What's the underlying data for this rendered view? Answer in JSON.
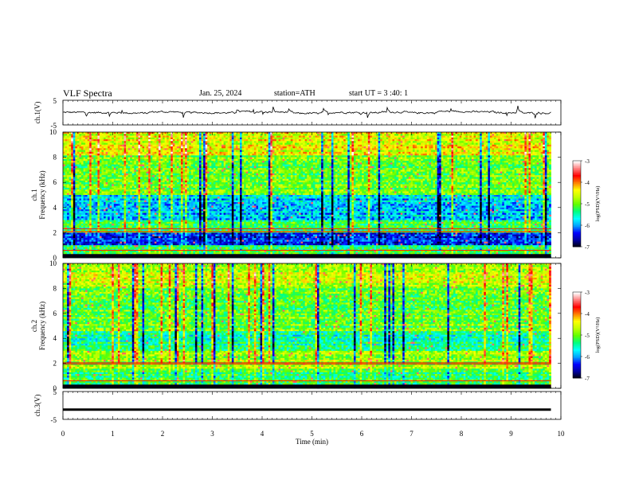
{
  "header": {
    "title": "VLF  Spectra",
    "date": "Jan. 25, 2024",
    "station": "station=ATH",
    "start_ut": "start  UT  =   3  :40: 1"
  },
  "chart_data": [
    {
      "type": "line",
      "panel": "ch1-voltage",
      "ylabel": "ch.1(V)",
      "ylim": [
        -5,
        5
      ],
      "yticks": [
        "5",
        "-5"
      ],
      "xlim": [
        0,
        10
      ],
      "series": [
        {
          "mean": 0,
          "amplitude_approx": 1.2,
          "values_approx": [
            0.1,
            0.0,
            -0.2,
            0.3,
            0.0,
            -0.1,
            0.4,
            0.2,
            -0.3,
            0.1,
            0.0,
            0.2,
            -0.1,
            0.5,
            0.3,
            0.0,
            -0.2,
            0.1
          ]
        }
      ]
    },
    {
      "type": "heatmap",
      "panel": "ch1-spectrogram",
      "ylabel": "ch.1\nFrequency (kHz)",
      "ylim": [
        0,
        10
      ],
      "yticks": [
        "0",
        "2",
        "4",
        "6",
        "8",
        "10"
      ],
      "xlim": [
        0,
        10
      ],
      "colorbar": {
        "label": "log(PSD)(V²/Hz)",
        "range": [
          -7,
          -3
        ],
        "ticks": [
          "-3",
          "-4",
          "-5",
          "-6",
          "-7"
        ]
      }
    },
    {
      "type": "heatmap",
      "panel": "ch2-spectrogram",
      "ylabel": "ch.2\nFrequency (kHz)",
      "ylim": [
        0,
        10
      ],
      "yticks": [
        "0",
        "2",
        "4",
        "6",
        "8",
        "10"
      ],
      "xlim": [
        0,
        10
      ],
      "colorbar": {
        "label": "log(PSD)(V²/Hz)",
        "range": [
          -7,
          -3
        ],
        "ticks": [
          "-3",
          "-4",
          "-5",
          "-6",
          "-7"
        ]
      }
    },
    {
      "type": "line",
      "panel": "ch3-voltage",
      "ylabel": "ch.3(V)",
      "ylim": [
        -5,
        5
      ],
      "yticks": [
        "5",
        "-5"
      ],
      "xlim": [
        0,
        10
      ],
      "series": [
        {
          "mean": -1.5,
          "values_approx": [
            -1.5,
            -1.5
          ]
        }
      ]
    }
  ],
  "xaxis": {
    "label": "Time  (min)",
    "ticks": [
      "0",
      "1",
      "2",
      "3",
      "4",
      "5",
      "6",
      "7",
      "8",
      "9",
      "10"
    ],
    "range": [
      0,
      10
    ]
  },
  "colors": {
    "colormap": [
      "#000000",
      "#0000a0",
      "#0000ff",
      "#00a0ff",
      "#00ffff",
      "#00ff80",
      "#60ff00",
      "#c0ff00",
      "#ffff00",
      "#ff8000",
      "#ff0000",
      "#ff8080",
      "#ffffff"
    ]
  }
}
